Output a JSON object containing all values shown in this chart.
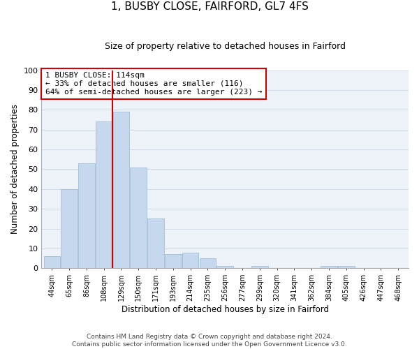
{
  "title": "1, BUSBY CLOSE, FAIRFORD, GL7 4FS",
  "subtitle": "Size of property relative to detached houses in Fairford",
  "xlabel": "Distribution of detached houses by size in Fairford",
  "ylabel": "Number of detached properties",
  "bar_labels": [
    "44sqm",
    "65sqm",
    "86sqm",
    "108sqm",
    "129sqm",
    "150sqm",
    "171sqm",
    "193sqm",
    "214sqm",
    "235sqm",
    "256sqm",
    "277sqm",
    "299sqm",
    "320sqm",
    "341sqm",
    "362sqm",
    "384sqm",
    "405sqm",
    "426sqm",
    "447sqm",
    "468sqm"
  ],
  "bar_values": [
    6,
    40,
    53,
    74,
    79,
    51,
    25,
    7,
    8,
    5,
    1,
    0,
    1,
    0,
    0,
    0,
    1,
    1,
    0,
    0,
    0
  ],
  "bar_color": "#c5d8ed",
  "bar_edge_color": "#a8c4dc",
  "highlight_line_color": "#cc0000",
  "ylim": [
    0,
    100
  ],
  "yticks": [
    0,
    10,
    20,
    30,
    40,
    50,
    60,
    70,
    80,
    90,
    100
  ],
  "annotation_line1": "1 BUSBY CLOSE: 114sqm",
  "annotation_line2": "← 33% of detached houses are smaller (116)",
  "annotation_line3": "64% of semi-detached houses are larger (223) →",
  "annotation_box_color": "white",
  "annotation_box_edge": "#cc0000",
  "footer_line1": "Contains HM Land Registry data © Crown copyright and database right 2024.",
  "footer_line2": "Contains public sector information licensed under the Open Government Licence v3.0.",
  "grid_color": "#d0dce8",
  "background_color": "#eef3fa"
}
